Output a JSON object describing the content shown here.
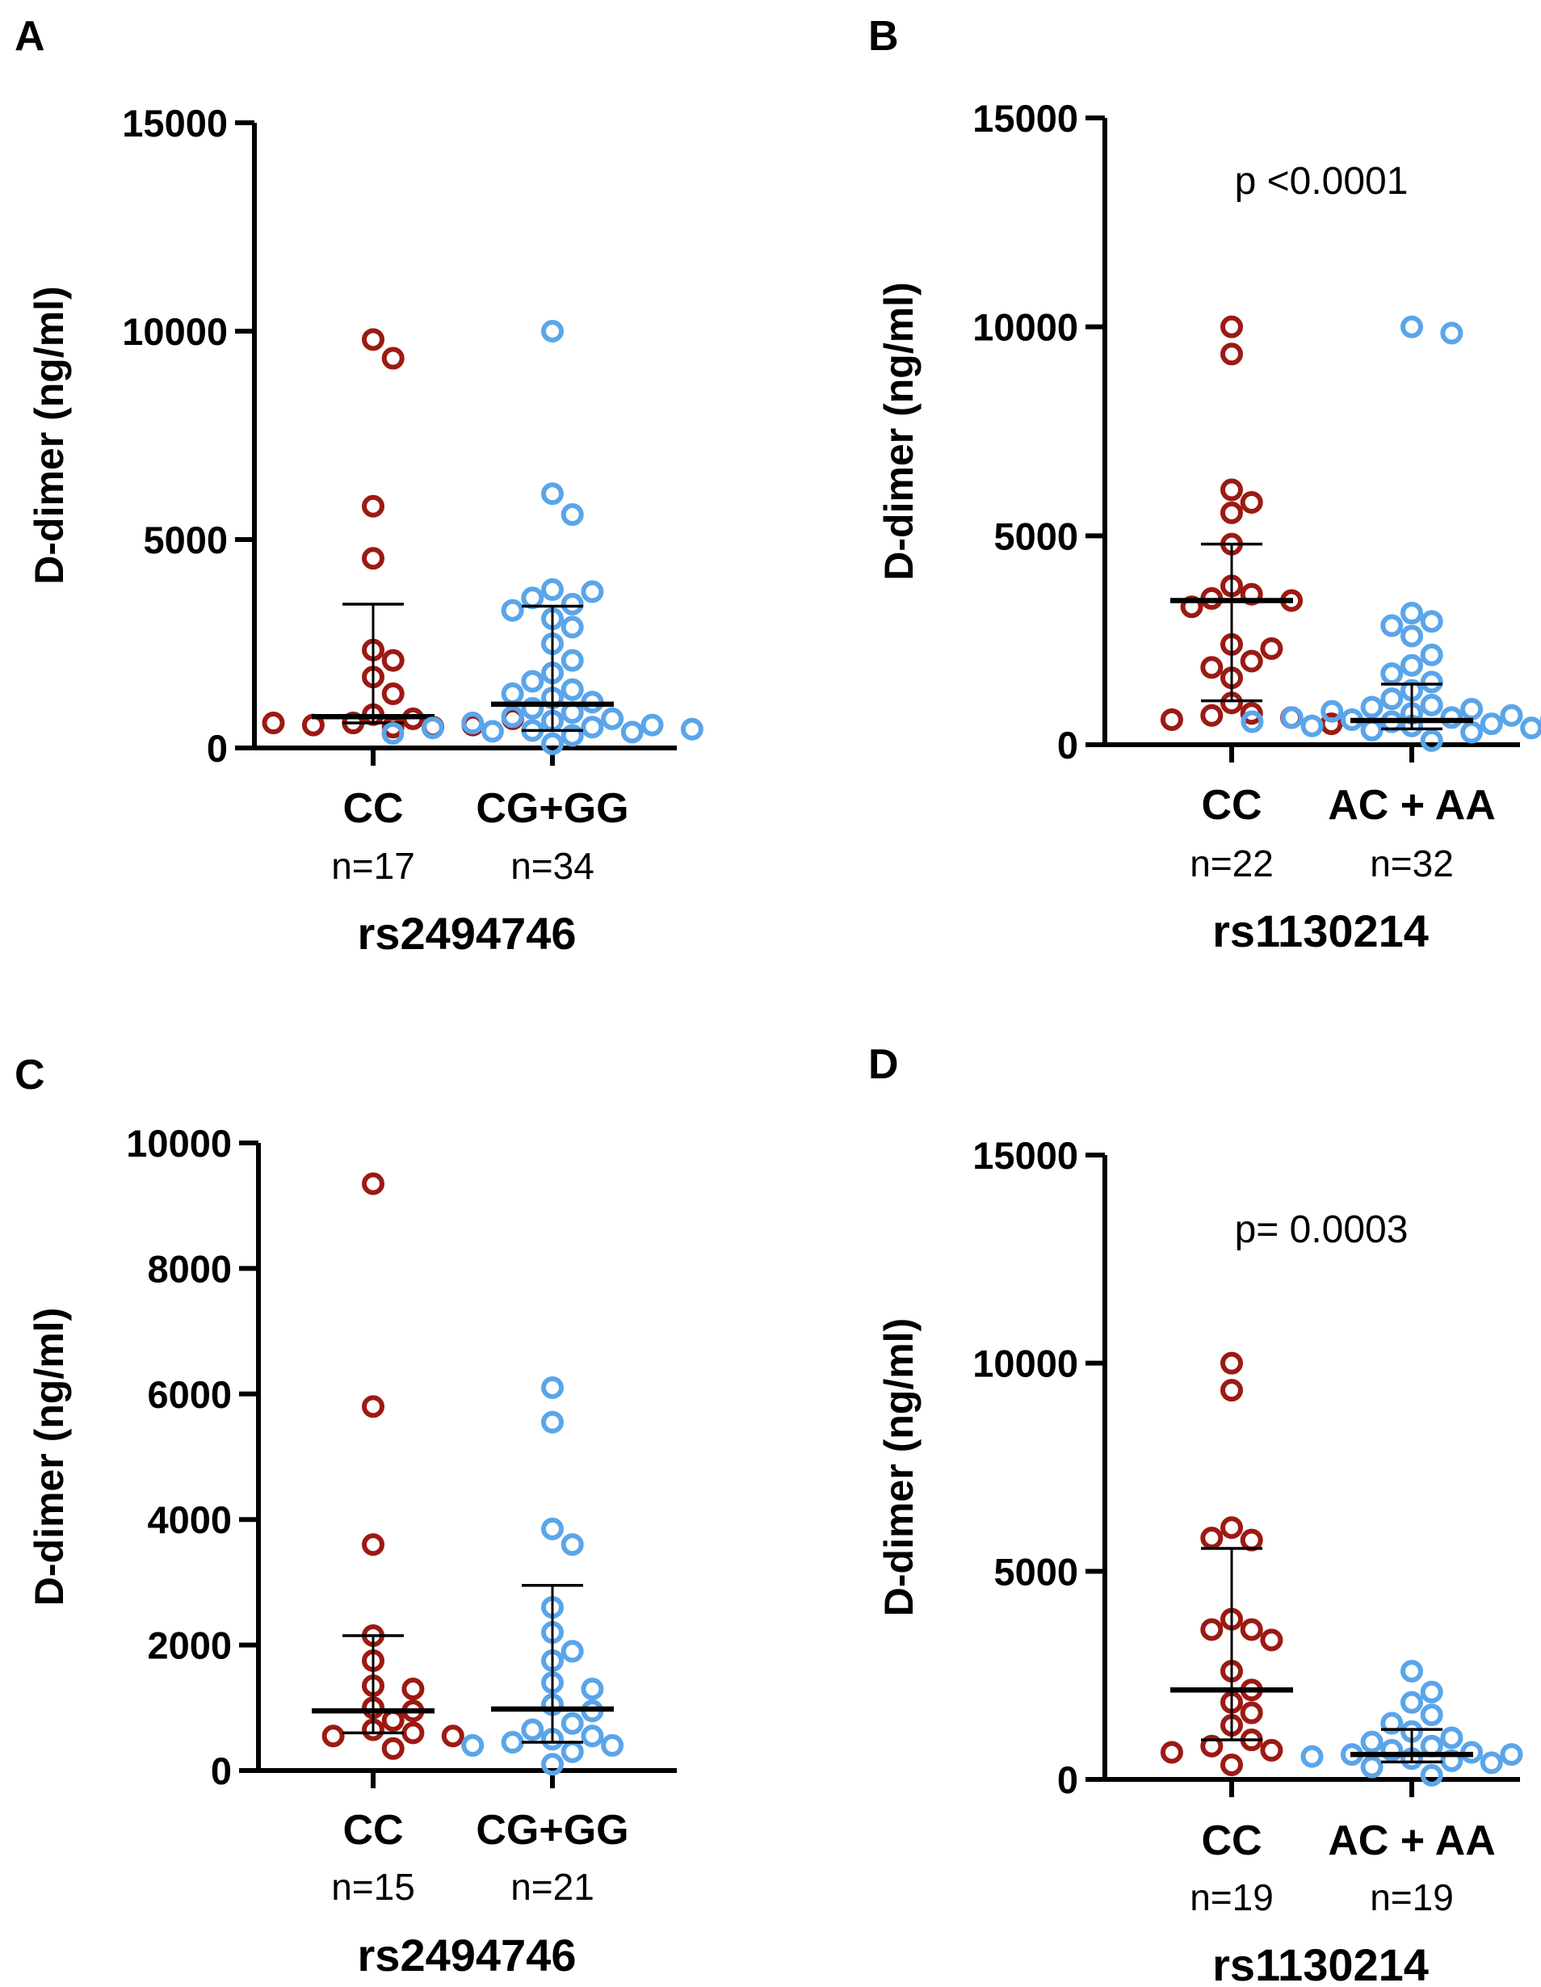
{
  "chart_data": [
    {
      "type": "scatter",
      "panel_label": "A",
      "ylabel": "D-dimer (ng/ml)",
      "ylim": [
        0,
        15000
      ],
      "yticks": [
        "15000",
        "10000",
        "5000",
        "0"
      ],
      "snp": "rs2494746",
      "p_value": "",
      "colors": {
        "group1": "#9c1a13",
        "group2": "#5aa5ea"
      },
      "groups": [
        {
          "label": "CC",
          "n": "n=17",
          "color": "#9c1a13",
          "median": 750,
          "q1": 600,
          "q3": 3450,
          "values": [
            9800,
            9350,
            5800,
            4550,
            2350,
            2100,
            1700,
            1300,
            800,
            700,
            600,
            550,
            500,
            500,
            550,
            600,
            700
          ]
        },
        {
          "label": "CG+GG",
          "n": "n=34",
          "color": "#5aa5ea",
          "median": 1050,
          "q1": 420,
          "q3": 3400,
          "values": [
            10000,
            6100,
            5600,
            3800,
            3750,
            3600,
            3450,
            3300,
            3100,
            2900,
            2500,
            2100,
            1800,
            1600,
            1400,
            1300,
            1200,
            1100,
            950,
            850,
            750,
            700,
            650,
            600,
            550,
            500,
            480,
            450,
            420,
            400,
            380,
            350,
            300,
            100
          ]
        }
      ]
    },
    {
      "type": "scatter",
      "panel_label": "B",
      "ylabel": "D-dimer (ng/ml)",
      "ylim": [
        0,
        15000
      ],
      "yticks": [
        "15000",
        "10000",
        "5000",
        "0"
      ],
      "snp": "rs1130214",
      "p_value": "p <0.0001",
      "colors": {
        "group1": "#9c1a13",
        "group2": "#5aa5ea"
      },
      "groups": [
        {
          "label": "CC",
          "n": "n=22",
          "color": "#9c1a13",
          "median": 3450,
          "q1": 1050,
          "q3": 4800,
          "values": [
            10000,
            9350,
            6100,
            5800,
            5550,
            4800,
            3800,
            3600,
            3500,
            3450,
            3300,
            2400,
            2300,
            2000,
            1850,
            1600,
            1000,
            750,
            700,
            650,
            600,
            500
          ]
        },
        {
          "label": "AC + AA",
          "n": "n=32",
          "color": "#5aa5ea",
          "median": 580,
          "q1": 380,
          "q3": 1450,
          "values": [
            10000,
            9850,
            3150,
            2950,
            2850,
            2600,
            2150,
            1900,
            1700,
            1500,
            1300,
            1100,
            950,
            900,
            850,
            800,
            750,
            700,
            650,
            650,
            600,
            600,
            550,
            550,
            500,
            500,
            450,
            450,
            400,
            350,
            300,
            100
          ]
        }
      ]
    },
    {
      "type": "scatter",
      "panel_label": "C",
      "ylabel": "D-dimer (ng/ml)",
      "ylim": [
        0,
        10000
      ],
      "yticks": [
        "10000",
        "8000",
        "6000",
        "4000",
        "2000",
        "0"
      ],
      "snp": "rs2494746",
      "p_value": "",
      "colors": {
        "group1": "#9c1a13",
        "group2": "#5aa5ea"
      },
      "groups": [
        {
          "label": "CC",
          "n": "n=15",
          "color": "#9c1a13",
          "median": 950,
          "q1": 600,
          "q3": 2150,
          "values": [
            9350,
            5800,
            3600,
            2150,
            1750,
            1350,
            1300,
            1000,
            950,
            800,
            650,
            600,
            550,
            550,
            350
          ]
        },
        {
          "label": "CG+GG",
          "n": "n=21",
          "color": "#5aa5ea",
          "median": 980,
          "q1": 450,
          "q3": 2950,
          "values": [
            6100,
            5550,
            3850,
            3600,
            2600,
            2200,
            1900,
            1750,
            1400,
            1300,
            1050,
            950,
            750,
            650,
            550,
            500,
            450,
            400,
            400,
            300,
            100
          ]
        }
      ]
    },
    {
      "type": "scatter",
      "panel_label": "D",
      "ylabel": "D-dimer (ng/ml)",
      "ylim": [
        0,
        15000
      ],
      "yticks": [
        "15000",
        "10000",
        "5000",
        "0"
      ],
      "snp": "rs1130214",
      "p_value": "p= 0.0003",
      "colors": {
        "group1": "#9c1a13",
        "group2": "#5aa5ea"
      },
      "groups": [
        {
          "label": "CC",
          "n": "n=19",
          "color": "#9c1a13",
          "median": 2150,
          "q1": 950,
          "q3": 5550,
          "values": [
            10000,
            9350,
            6050,
            5750,
            5800,
            3850,
            3600,
            3600,
            3350,
            2600,
            2150,
            1850,
            1600,
            1300,
            950,
            800,
            700,
            650,
            350
          ]
        },
        {
          "label": "AC + AA",
          "n": "n=19",
          "color": "#5aa5ea",
          "median": 600,
          "q1": 420,
          "q3": 1200,
          "values": [
            2600,
            2100,
            1850,
            1550,
            1350,
            1150,
            1000,
            900,
            800,
            700,
            650,
            600,
            600,
            550,
            500,
            450,
            400,
            300,
            100
          ]
        }
      ]
    }
  ]
}
